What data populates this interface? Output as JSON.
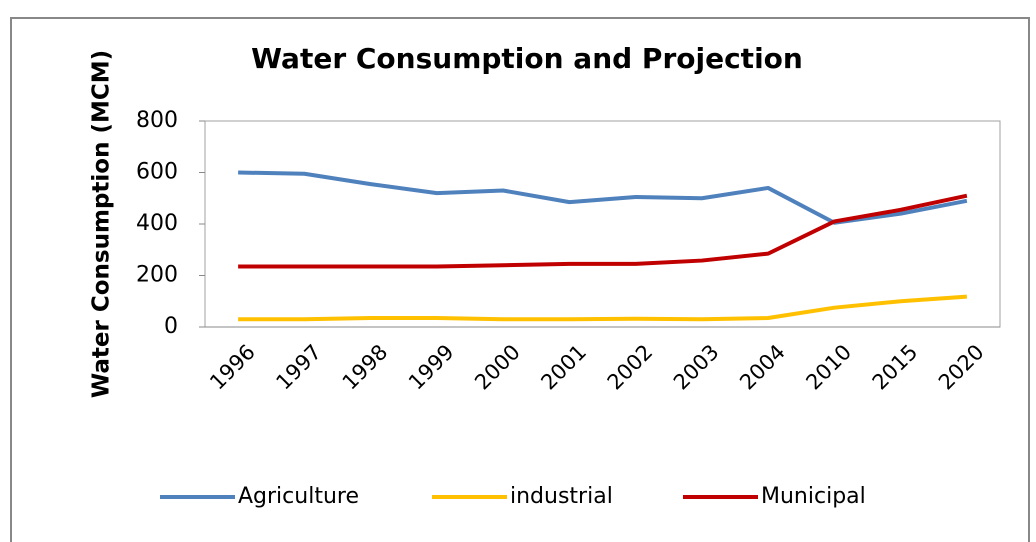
{
  "chart_data": {
    "type": "line",
    "title": "Water Consumption and Projection",
    "y_label": "Water Consumption (MCM)",
    "categories": [
      "1996",
      "1997",
      "1998",
      "1999",
      "2000",
      "2001",
      "2002",
      "2003",
      "2004",
      "2010",
      "2015",
      "2020"
    ],
    "series": [
      {
        "name": "Agriculture",
        "color": "#4f81bd",
        "values": [
          600,
          595,
          555,
          520,
          530,
          485,
          505,
          500,
          540,
          405,
          440,
          490
        ]
      },
      {
        "name": "industrial",
        "color": "#ffc000",
        "values": [
          30,
          30,
          35,
          35,
          30,
          30,
          32,
          30,
          35,
          75,
          100,
          118
        ]
      },
      {
        "name": "Municipal",
        "color": "#c00000",
        "values": [
          235,
          235,
          235,
          235,
          240,
          245,
          245,
          258,
          285,
          410,
          455,
          510
        ]
      }
    ],
    "ylim": [
      0,
      800
    ],
    "yticks": [
      0,
      200,
      400,
      600,
      800
    ],
    "legend": "bottom"
  }
}
